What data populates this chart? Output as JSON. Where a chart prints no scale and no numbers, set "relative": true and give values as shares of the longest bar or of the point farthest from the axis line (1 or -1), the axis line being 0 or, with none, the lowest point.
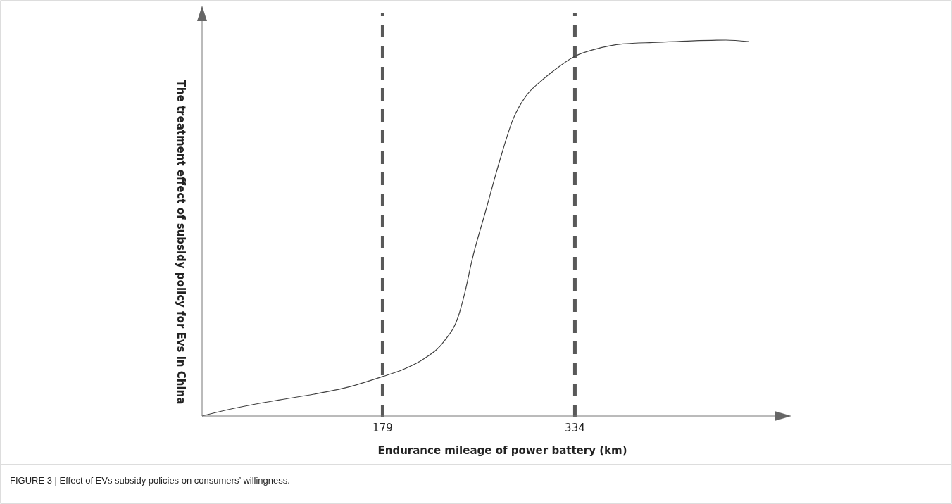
{
  "chart_data": {
    "type": "line",
    "relative": true,
    "xlabel": "Endurance mileage of power battery (km)",
    "ylabel": "The treatment effect of subsidy policy for Evs in China",
    "x": [
      33.4,
      51.7,
      73.8,
      96,
      123.6,
      151.3,
      179,
      195.6,
      212.2,
      228.8,
      239.9,
      245.4,
      251,
      262,
      273.1,
      284.2,
      295.2,
      306.3,
      317.4,
      334,
      350.6,
      372.7,
      400.4,
      428.1,
      455.8,
      474
    ],
    "series": [
      {
        "color": "#404040",
        "values": [
          0,
          0.015,
          0.03,
          0.043,
          0.058,
          0.077,
          0.105,
          0.124,
          0.152,
          0.2,
          0.264,
          0.33,
          0.414,
          0.545,
          0.676,
          0.79,
          0.854,
          0.89,
          0.92,
          0.957,
          0.976,
          0.99,
          0.994,
          0.998,
          1,
          0.996
        ]
      }
    ],
    "xlim": [
      33.4,
      495
    ],
    "xticks": [
      179,
      334
    ],
    "ref_lines": [
      {
        "axis": "x",
        "value": 179,
        "color": "#595959",
        "line_style": "dashed"
      },
      {
        "axis": "x",
        "value": 334,
        "color": "#595959",
        "line_style": "dashed"
      }
    ],
    "annotations": [
      "FIGURE 3 | Effect of EVs subsidy policies on consumers’ willingness."
    ],
    "grid": false,
    "marker": "none",
    "line_style": "solid"
  }
}
